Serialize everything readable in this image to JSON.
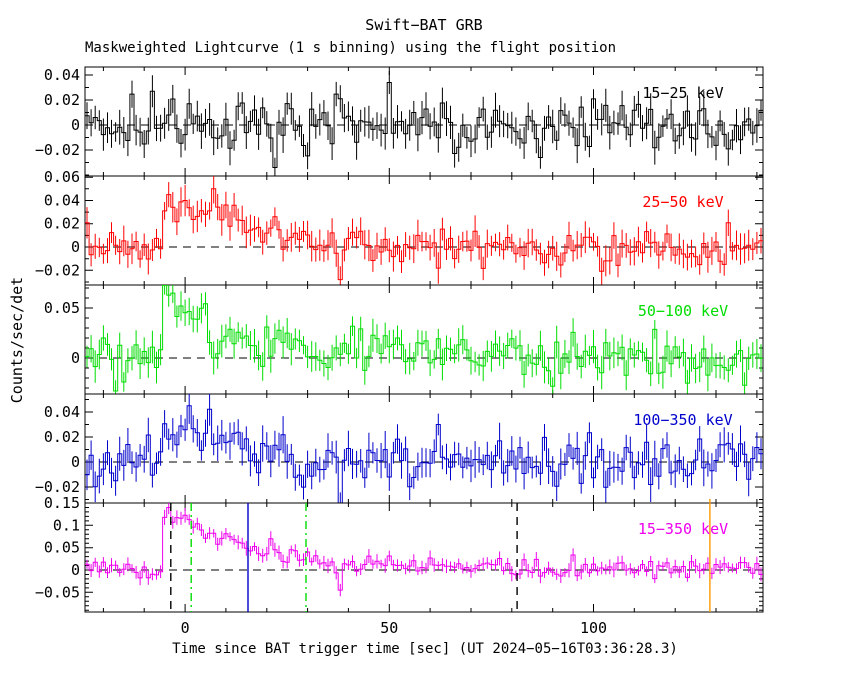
{
  "window": {
    "title": "Swift−BAT GRB",
    "subtitle": "Maskweighted Lightcurve (1 s binning) using the flight position"
  },
  "chart_data": {
    "type": "line",
    "title": "Swift−BAT GRB",
    "subtitle": "Maskweighted Lightcurve (1 s binning) using the flight position",
    "xlabel": "Time since BAT trigger time [sec] (UT 2024−05−16T03:36:28.3)",
    "ylabel": "Counts/sec/det",
    "x_range": [
      -24.5,
      141.5
    ],
    "bin_seconds": 1,
    "x_major_ticks": [
      {
        "v": 0,
        "label": "0"
      },
      {
        "v": 50,
        "label": "50"
      },
      {
        "v": 100,
        "label": "100"
      }
    ],
    "x_minor_step": 10,
    "y_minor_step": 0.01,
    "grid": "off",
    "legend_position": "in-panel-right",
    "zero_line": {
      "style": "dashed",
      "color": "#000000"
    },
    "panels": [
      {
        "band": "15−25 keV",
        "color": "#000000",
        "ylim": [
          -0.0408,
          0.0464
        ],
        "yticks": [
          [
            0.04,
            "0.04"
          ],
          [
            0.02,
            "0.02"
          ],
          [
            0,
            "0"
          ],
          [
            -0.02,
            "−0.02"
          ]
        ],
        "series": {
          "seed": 3,
          "sigma": 0.0095,
          "err": 0.011,
          "envelope": [
            [
              -24.5,
              0
            ],
            [
              141,
              0
            ]
          ],
          "events": [
            [
              -8,
              0.027
            ],
            [
              22,
              -0.034
            ],
            [
              50,
              0.034
            ],
            [
              87,
              -0.026
            ]
          ]
        }
      },
      {
        "band": "25−50 keV",
        "color": "#ff0000",
        "ylim": [
          -0.0326,
          0.061
        ],
        "yticks": [
          [
            0.06,
            "0.06"
          ],
          [
            0.04,
            "0.04"
          ],
          [
            0.02,
            "0.02"
          ],
          [
            0,
            "0"
          ],
          [
            -0.02,
            "−0.02"
          ]
        ],
        "series": {
          "seed": 7,
          "sigma": 0.008,
          "err": 0.0105,
          "envelope": [
            [
              -24.5,
              0
            ],
            [
              -6,
              0
            ],
            [
              -5,
              0.035
            ],
            [
              -2,
              0.038
            ],
            [
              0,
              0.032
            ],
            [
              3,
              0.026
            ],
            [
              6,
              0.03
            ],
            [
              9,
              0.025
            ],
            [
              12,
              0.02
            ],
            [
              15,
              0.016
            ],
            [
              20,
              0.012
            ],
            [
              25,
              0.01
            ],
            [
              30,
              0.008
            ],
            [
              35,
              0.004
            ],
            [
              45,
              0.001
            ],
            [
              50,
              0
            ],
            [
              141,
              0
            ]
          ],
          "events": [
            [
              -4,
              0.045
            ],
            [
              7,
              0.05
            ],
            [
              38,
              -0.028
            ]
          ]
        }
      },
      {
        "band": "50−100 keV",
        "color": "#00dd00",
        "ylim": [
          -0.036,
          0.073
        ],
        "yticks": [
          [
            0.05,
            "0.05"
          ],
          [
            0,
            "0"
          ]
        ],
        "series": {
          "seed": 5,
          "sigma": 0.011,
          "err": 0.013,
          "envelope": [
            [
              -24.5,
              0
            ],
            [
              -6,
              0
            ],
            [
              -5,
              0.055
            ],
            [
              -4,
              0.062
            ],
            [
              -2,
              0.05
            ],
            [
              0,
              0.046
            ],
            [
              2,
              0.04
            ],
            [
              4,
              0.05
            ],
            [
              6,
              0.02
            ],
            [
              7,
              0.006
            ],
            [
              9,
              0.012
            ],
            [
              12,
              0.016
            ],
            [
              15,
              0.013
            ],
            [
              20,
              0.012
            ],
            [
              30,
              0.011
            ],
            [
              40,
              0.01
            ],
            [
              50,
              0.009
            ],
            [
              60,
              0.008
            ],
            [
              70,
              0.005
            ],
            [
              80,
              0.003
            ],
            [
              90,
              0
            ],
            [
              141,
              0
            ]
          ],
          "events": [
            [
              -20,
              0.02
            ],
            [
              -17,
              -0.033
            ],
            [
              -15,
              -0.024
            ]
          ]
        }
      },
      {
        "band": "100−350 keV",
        "color": "#0000cc",
        "ylim": [
          -0.0328,
          0.0544
        ],
        "yticks": [
          [
            0.04,
            "0.04"
          ],
          [
            0.02,
            "0.02"
          ],
          [
            0,
            "0"
          ],
          [
            -0.02,
            "−0.02"
          ]
        ],
        "series": {
          "seed": 11,
          "sigma": 0.009,
          "err": 0.0115,
          "envelope": [
            [
              -24.5,
              0
            ],
            [
              -6,
              0
            ],
            [
              -5,
              0.022
            ],
            [
              -3,
              0.028
            ],
            [
              -1,
              0.026
            ],
            [
              0,
              0.032
            ],
            [
              1,
              0.038
            ],
            [
              2,
              0.03
            ],
            [
              4,
              0.023
            ],
            [
              6,
              0.026
            ],
            [
              8,
              0.022
            ],
            [
              10,
              0.025
            ],
            [
              12,
              0.018
            ],
            [
              14,
              0.013
            ],
            [
              16,
              0.009
            ],
            [
              18,
              0.01
            ],
            [
              20,
              0.006
            ],
            [
              25,
              0.003
            ],
            [
              30,
              0
            ],
            [
              141,
              0
            ]
          ],
          "events": [
            [
              1,
              0.045
            ],
            [
              38,
              -0.033
            ],
            [
              62,
              0.03
            ]
          ]
        }
      },
      {
        "band": "15−350 keV",
        "color": "#ee00ee",
        "ylim": [
          -0.094,
          0.15
        ],
        "yticks": [
          [
            0.15,
            "0.15"
          ],
          [
            0.1,
            "0.1"
          ],
          [
            0.05,
            "0.05"
          ],
          [
            0,
            "0"
          ],
          [
            -0.05,
            "−0.05"
          ]
        ],
        "series": {
          "seed": 9,
          "sigma": 0.012,
          "err": 0.013,
          "envelope": [
            [
              -24.5,
              0
            ],
            [
              -6,
              0
            ],
            [
              -5,
              0.125
            ],
            [
              -4,
              0.13
            ],
            [
              -3,
              0.12
            ],
            [
              -1,
              0.115
            ],
            [
              0,
              0.12
            ],
            [
              2,
              0.1
            ],
            [
              4,
              0.095
            ],
            [
              6,
              0.085
            ],
            [
              8,
              0.075
            ],
            [
              10,
              0.07
            ],
            [
              12,
              0.06
            ],
            [
              14,
              0.055
            ],
            [
              16,
              0.05
            ],
            [
              18,
              0.046
            ],
            [
              20,
              0.045
            ],
            [
              22,
              0.04
            ],
            [
              24,
              0.036
            ],
            [
              26,
              0.035
            ],
            [
              28,
              0.03
            ],
            [
              30,
              0.026
            ],
            [
              32,
              0.02
            ],
            [
              34,
              0.016
            ],
            [
              36,
              0.01
            ],
            [
              38,
              0.006
            ],
            [
              40,
              0.01
            ],
            [
              45,
              0.012
            ],
            [
              50,
              0.01
            ],
            [
              55,
              0.012
            ],
            [
              60,
              0.015
            ],
            [
              65,
              0.012
            ],
            [
              70,
              0.01
            ],
            [
              75,
              0.008
            ],
            [
              80,
              0.006
            ],
            [
              90,
              0.005
            ],
            [
              100,
              0.005
            ],
            [
              110,
              0.004
            ],
            [
              120,
              0.005
            ],
            [
              126,
              0.015
            ],
            [
              130,
              0.008
            ],
            [
              135,
              0
            ],
            [
              141,
              0
            ]
          ],
          "events": [
            [
              -4,
              0.14
            ],
            [
              38,
              -0.045
            ]
          ]
        }
      }
    ],
    "markers": [
      {
        "t": -3.5,
        "color": "#000000",
        "style": "dashed"
      },
      {
        "t": 1.5,
        "color": "#00dd00",
        "style": "dashdot"
      },
      {
        "t": 15.4,
        "color": "#0000cc",
        "style": "solid"
      },
      {
        "t": 29.6,
        "color": "#00dd00",
        "style": "dashdot"
      },
      {
        "t": 81.3,
        "color": "#000000",
        "style": "dashed"
      },
      {
        "t": 128.5,
        "color": "#ff9900",
        "style": "solid"
      }
    ]
  }
}
